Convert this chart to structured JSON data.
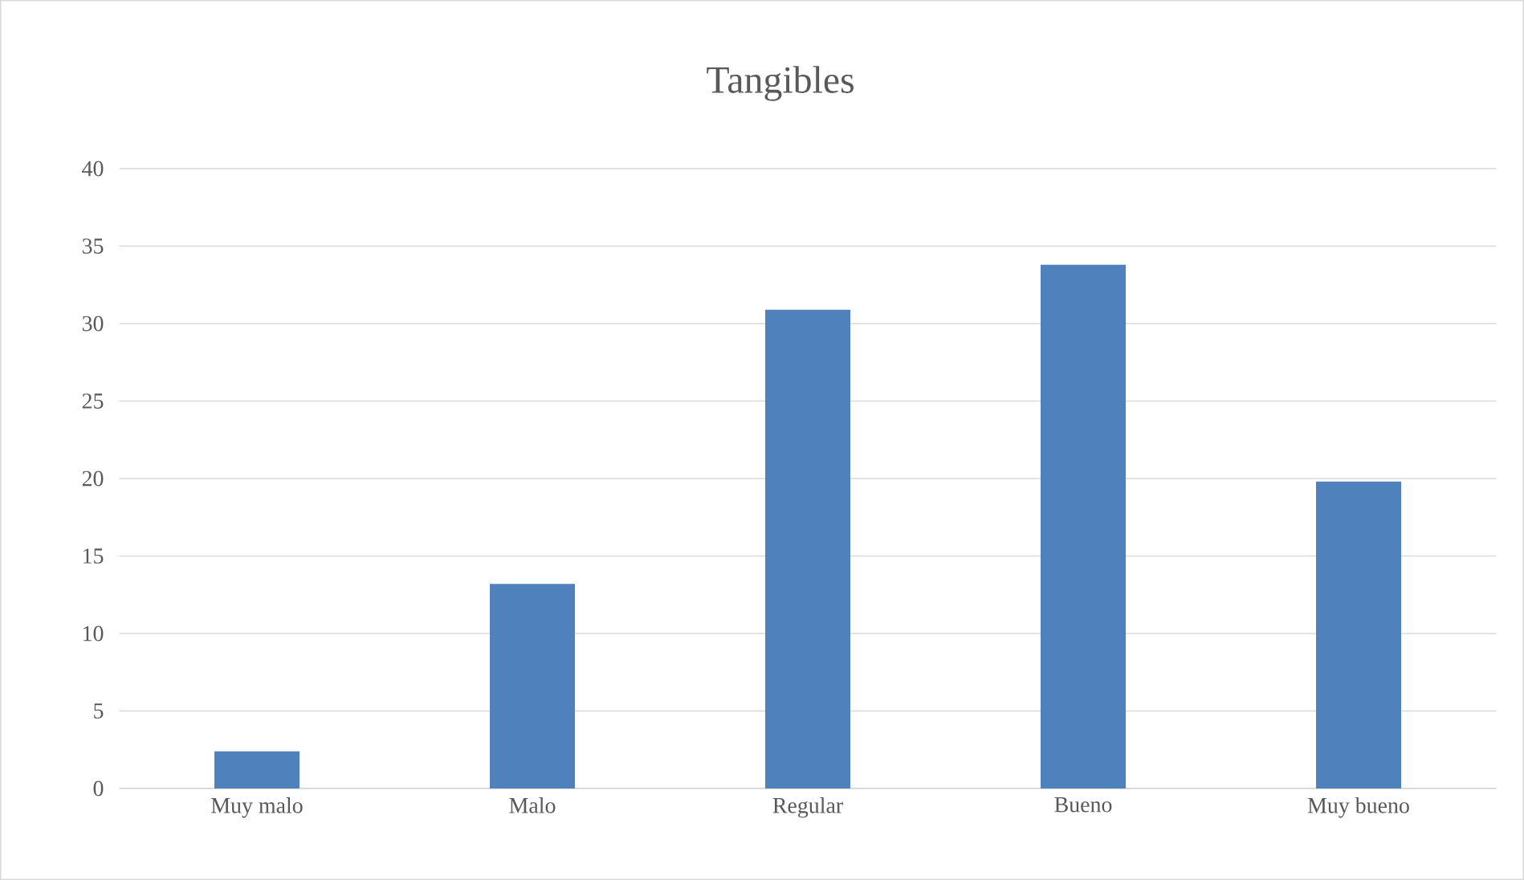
{
  "chart_data": {
    "type": "bar",
    "title": "Tangibles",
    "categories": [
      "Muy malo",
      "Malo",
      "Regular",
      "Bueno",
      "Muy bueno"
    ],
    "values": [
      2.4,
      13.2,
      30.9,
      33.8,
      19.8
    ],
    "color": "#4f81bd",
    "ylim": [
      0,
      40
    ],
    "yticks": [
      0,
      5,
      10,
      15,
      20,
      25,
      30,
      35,
      40
    ],
    "grid": "y"
  }
}
